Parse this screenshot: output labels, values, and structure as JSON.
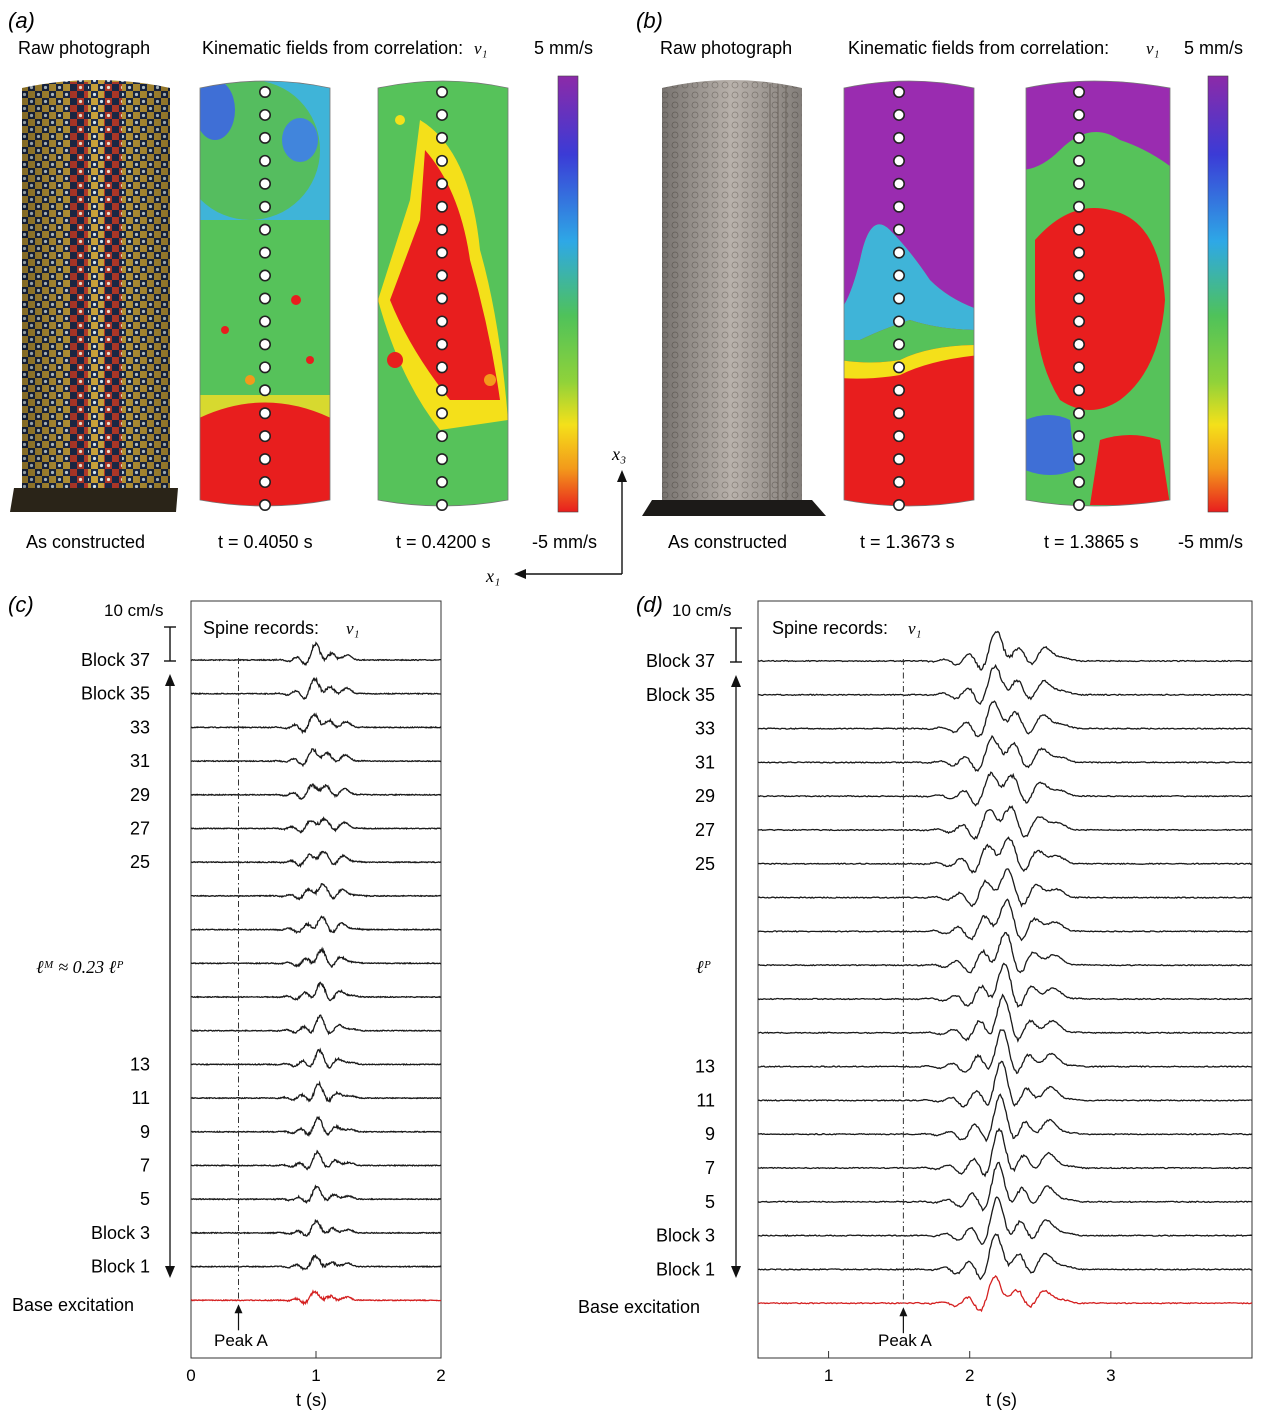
{
  "panel_a": {
    "letter": "(a)",
    "raw_label": "Raw photograph",
    "kin_label": "Kinematic fields from correlation:",
    "kin_var": "v₁",
    "scale_top": "5 mm/s",
    "scale_bottom": "-5 mm/s",
    "caption_photo": "As constructed",
    "caption_t1": "t = 0.4050 s",
    "caption_t2": "t = 0.4200 s"
  },
  "panel_b": {
    "letter": "(b)",
    "raw_label": "Raw photograph",
    "kin_label": "Kinematic fields from correlation:",
    "kin_var": "v₁",
    "scale_top": "5 mm/s",
    "scale_bottom": "-5 mm/s",
    "caption_photo": "As constructed",
    "caption_t1": "t = 1.3673 s",
    "caption_t2": "t = 1.3865 s"
  },
  "axes_gizmo": {
    "x3": "x₃",
    "x1": "x₁"
  },
  "panel_c": {
    "letter": "(c)",
    "scale_bar": "10 cm/s",
    "title": "Spine records:",
    "title_var": "v₁",
    "length_label": "ℓᴹ ≈ 0.23 ℓᴾ",
    "peak_label": "Peak A",
    "xlabel": "t (s)",
    "base_label": "Base excitation",
    "row_labels": [
      "Block 37",
      "Block 35",
      "33",
      "31",
      "29",
      "27",
      "25",
      "",
      "",
      "",
      "",
      "",
      "13",
      "11",
      "9",
      "7",
      "5",
      "Block 3",
      "Block 1"
    ]
  },
  "panel_d": {
    "letter": "(d)",
    "scale_bar": "10 cm/s",
    "title": "Spine records:",
    "title_var": "v₁",
    "length_label": "ℓᴾ",
    "peak_label": "Peak A",
    "xlabel": "t (s)",
    "base_label": "Base excitation",
    "row_labels": [
      "Block 37",
      "Block 35",
      "33",
      "31",
      "29",
      "27",
      "25",
      "",
      "",
      "",
      "",
      "",
      "13",
      "11",
      "9",
      "7",
      "5",
      "Block 3",
      "Block 1"
    ]
  },
  "colors": {
    "trace": "#1a1a1a",
    "base_trace": "#d42020",
    "colorbar": [
      "#7a1fa2",
      "#3b3bd6",
      "#2ea8e6",
      "#5fcf6a",
      "#36b24a",
      "#f4e01a",
      "#f39a1b",
      "#e81e1e"
    ]
  },
  "chart_data": [
    {
      "type": "line",
      "title": "Spine records: v₁",
      "xlabel": "t (s)",
      "xlim": [
        0,
        2
      ],
      "xticks": [
        0,
        1,
        2
      ],
      "peak_A_time": 0.38,
      "series_count": 20,
      "series": [
        {
          "name": "Block 37",
          "peak_time": 1.05,
          "peak_amp": 0.55
        },
        {
          "name": "Block 1",
          "peak_time": 1.02,
          "peak_amp": 0.45
        },
        {
          "name": "Base excitation",
          "peak_time": 1.0,
          "peak_amp": 0.35
        }
      ]
    },
    {
      "type": "line",
      "title": "Spine records: v₁",
      "xlabel": "t (s)",
      "xlim": [
        0.5,
        4.0
      ],
      "xticks": [
        1,
        2,
        3
      ],
      "peak_A_time": 1.53,
      "series_count": 20,
      "series": [
        {
          "name": "Block 37",
          "peak_time": 2.3,
          "peak_amp": 1.0
        },
        {
          "name": "Block 1",
          "peak_time": 2.2,
          "peak_amp": 1.1
        },
        {
          "name": "Base excitation",
          "peak_time": 2.2,
          "peak_amp": 1.0
        }
      ]
    }
  ]
}
